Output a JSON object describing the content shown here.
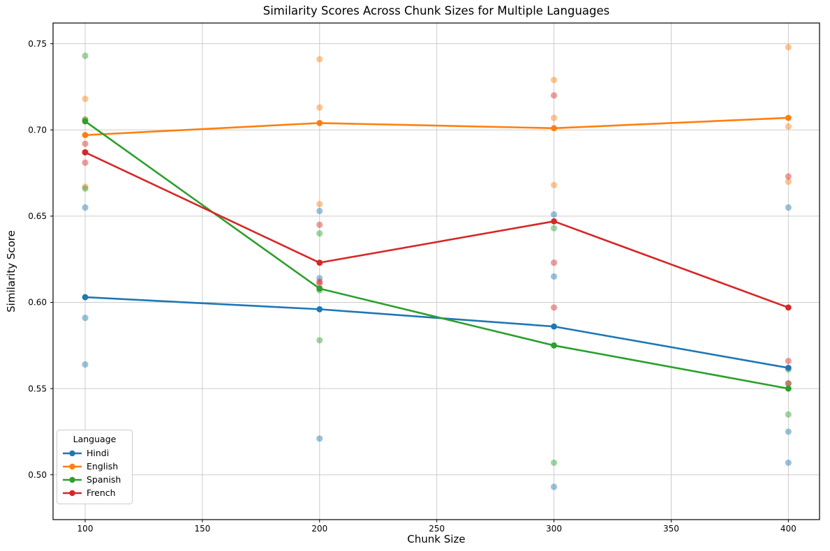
{
  "chart_data": {
    "type": "line",
    "title": "Similarity Scores Across Chunk Sizes for Multiple Languages",
    "xlabel": "Chunk Size",
    "ylabel": "Similarity Score",
    "x": [
      100,
      200,
      300,
      400
    ],
    "xticks": [
      100,
      150,
      200,
      250,
      300,
      350,
      400
    ],
    "yticks": [
      0.5,
      0.55,
      0.6,
      0.65,
      0.7,
      0.75
    ],
    "xlim": [
      86.3,
      413.3
    ],
    "ylim": [
      0.474,
      0.762
    ],
    "grid": true,
    "grid_color": "#cccccc",
    "spine_color": "#000000",
    "scatter_alpha": 0.45,
    "legend": {
      "title": "Language",
      "position": "lower left"
    },
    "series": [
      {
        "name": "Hindi",
        "color": "#1f77b4",
        "line": [
          0.603,
          0.596,
          0.586,
          0.562
        ],
        "scatter": [
          [
            0.655,
            0.591,
            0.564
          ],
          [
            0.653,
            0.614,
            0.521
          ],
          [
            0.651,
            0.615,
            0.493
          ],
          [
            0.655,
            0.525,
            0.507
          ]
        ]
      },
      {
        "name": "English",
        "color": "#ff7f0e",
        "line": [
          0.697,
          0.704,
          0.701,
          0.707
        ],
        "scatter": [
          [
            0.718,
            0.706,
            0.667
          ],
          [
            0.741,
            0.713,
            0.657
          ],
          [
            0.729,
            0.707,
            0.668
          ],
          [
            0.748,
            0.702,
            0.67
          ]
        ]
      },
      {
        "name": "Spanish",
        "color": "#2ca02c",
        "line": [
          0.705,
          0.608,
          0.575,
          0.55
        ],
        "scatter": [
          [
            0.743,
            0.706,
            0.666
          ],
          [
            0.64,
            0.607,
            0.578
          ],
          [
            0.643,
            0.575,
            0.507
          ],
          [
            0.561,
            0.553,
            0.535
          ]
        ]
      },
      {
        "name": "French",
        "color": "#d62728",
        "line": [
          0.687,
          0.623,
          0.647,
          0.597
        ],
        "scatter": [
          [
            0.692,
            0.687,
            0.681
          ],
          [
            0.645,
            0.612,
            0.611
          ],
          [
            0.72,
            0.623,
            0.597
          ],
          [
            0.673,
            0.566,
            0.553
          ]
        ]
      }
    ]
  }
}
